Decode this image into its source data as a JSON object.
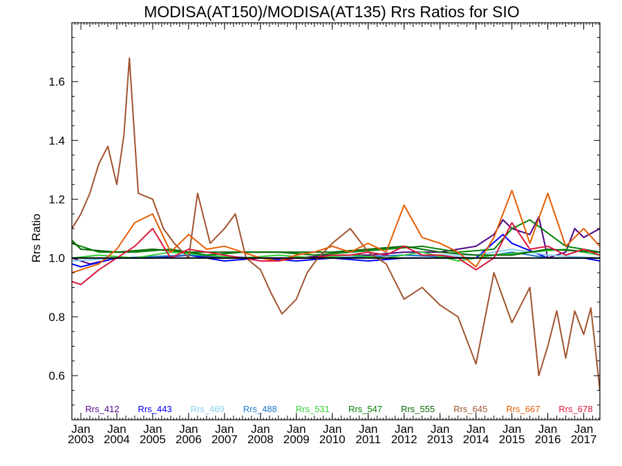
{
  "chart_data": {
    "type": "line",
    "title": "MODISA(AT150)/MODISA(AT135)  Rrs Ratios for SIO",
    "ylabel": "Rrs Ratio",
    "xlabel": "",
    "xlim": [
      2002.75,
      2017.45
    ],
    "ylim": [
      0.45,
      1.8
    ],
    "y_ticks": [
      0.6,
      0.8,
      1.0,
      1.2,
      1.4,
      1.6
    ],
    "y_tick_labels": [
      "0.6",
      "0.8",
      "1.0",
      "1.2",
      "1.4",
      "1.6"
    ],
    "x_ticks": [
      2003,
      2004,
      2005,
      2006,
      2007,
      2008,
      2009,
      2010,
      2011,
      2012,
      2013,
      2014,
      2015,
      2016,
      2017
    ],
    "x_tick_labels": [
      {
        "month": "Jan",
        "year": "2003"
      },
      {
        "month": "Jan",
        "year": "2004"
      },
      {
        "month": "Jan",
        "year": "2005"
      },
      {
        "month": "Jan",
        "year": "2006"
      },
      {
        "month": "Jan",
        "year": "2007"
      },
      {
        "month": "Jan",
        "year": "2008"
      },
      {
        "month": "Jan",
        "year": "2009"
      },
      {
        "month": "Jan",
        "year": "2010"
      },
      {
        "month": "Jan",
        "year": "2011"
      },
      {
        "month": "Jan",
        "year": "2012"
      },
      {
        "month": "Jan",
        "year": "2013"
      },
      {
        "month": "Jan",
        "year": "2014"
      },
      {
        "month": "Jan",
        "year": "2015"
      },
      {
        "month": "Jan",
        "year": "2016"
      },
      {
        "month": "Jan",
        "year": "2017"
      }
    ],
    "reference_line": {
      "y": 1.0,
      "color": "#000000"
    },
    "grid": false,
    "legend_position": "bottom inside plot",
    "series": [
      {
        "name": "Rrs_412",
        "color": "#4b0082",
        "x": [
          2002.75,
          2003.25,
          2004.0,
          2005.0,
          2006.0,
          2007.0,
          2008.0,
          2009.0,
          2010.0,
          2011.0,
          2012.0,
          2013.0,
          2013.5,
          2014.0,
          2014.5,
          2014.75,
          2015.0,
          2015.5,
          2015.75,
          2016.0,
          2016.5,
          2016.75,
          2017.0,
          2017.45
        ],
        "y": [
          1.0,
          0.98,
          1.0,
          1.0,
          1.01,
          1.0,
          1.0,
          1.0,
          1.01,
          1.01,
          1.02,
          1.02,
          1.03,
          1.04,
          1.08,
          1.13,
          1.1,
          1.08,
          1.14,
          1.0,
          1.02,
          1.1,
          1.07,
          1.1
        ]
      },
      {
        "name": "Rrs_443",
        "color": "#0000ff",
        "x": [
          2002.75,
          2003.0,
          2004.0,
          2005.0,
          2006.0,
          2007.0,
          2008.0,
          2009.0,
          2010.0,
          2011.0,
          2012.0,
          2013.0,
          2014.0,
          2014.75,
          2015.0,
          2016.0,
          2016.5,
          2017.0,
          2017.45
        ],
        "y": [
          0.98,
          0.97,
          1.0,
          1.0,
          1.01,
          0.99,
          1.0,
          0.99,
          1.0,
          0.99,
          1.0,
          1.0,
          1.0,
          1.08,
          1.05,
          1.0,
          1.0,
          1.0,
          0.99
        ]
      },
      {
        "name": "Rrs_469",
        "color": "#87ceeb",
        "x": [
          2002.75,
          2004.0,
          2006.0,
          2008.0,
          2010.0,
          2012.0,
          2014.0,
          2015.0,
          2016.0,
          2017.45
        ],
        "y": [
          0.99,
          1.0,
          1.0,
          1.0,
          1.0,
          1.01,
          1.01,
          1.03,
          1.01,
          1.0
        ]
      },
      {
        "name": "Rrs_488",
        "color": "#1e78c8",
        "x": [
          2002.75,
          2004.0,
          2006.0,
          2008.0,
          2010.0,
          2012.0,
          2014.0,
          2015.0,
          2016.0,
          2017.45
        ],
        "y": [
          1.0,
          1.0,
          1.01,
          1.0,
          1.0,
          1.01,
          1.0,
          1.02,
          1.0,
          1.0
        ]
      },
      {
        "name": "Rrs_531",
        "color": "#32cd32",
        "x": [
          2002.75,
          2003.5,
          2004.5,
          2005.5,
          2006.5,
          2007.5,
          2008.5,
          2009.5,
          2010.5,
          2011.5,
          2012.5,
          2013.5,
          2014.5,
          2015.5,
          2016.5,
          2017.45
        ],
        "y": [
          1.0,
          1.01,
          1.0,
          1.02,
          1.01,
          1.0,
          1.01,
          1.0,
          1.01,
          1.0,
          1.02,
          0.99,
          1.01,
          1.02,
          1.03,
          1.01
        ]
      },
      {
        "name": "Rrs_547",
        "color": "#008000",
        "x": [
          2002.75,
          2003.5,
          2004.5,
          2005.5,
          2006.5,
          2007.5,
          2008.5,
          2009.5,
          2010.5,
          2011.5,
          2012.5,
          2013.5,
          2014.5,
          2015.0,
          2015.5,
          2016.5,
          2017.45
        ],
        "y": [
          1.05,
          1.02,
          1.02,
          1.03,
          1.01,
          1.02,
          1.02,
          1.01,
          1.02,
          1.03,
          1.04,
          1.02,
          1.03,
          1.1,
          1.13,
          1.04,
          1.02
        ]
      },
      {
        "name": "Rrs_555",
        "color": "#006400",
        "x": [
          2002.75,
          2003.0,
          2004.0,
          2005.0,
          2006.0,
          2007.0,
          2008.0,
          2009.0,
          2010.0,
          2011.0,
          2012.0,
          2013.0,
          2014.0,
          2015.0,
          2016.0,
          2017.45
        ],
        "y": [
          1.06,
          1.03,
          1.02,
          1.03,
          1.02,
          1.02,
          1.02,
          1.02,
          1.02,
          1.03,
          1.04,
          1.02,
          1.01,
          1.01,
          1.03,
          1.02
        ]
      },
      {
        "name": "Rrs_645",
        "color": "#a0522d",
        "x": [
          2002.75,
          2003.0,
          2003.25,
          2003.5,
          2003.75,
          2004.0,
          2004.2,
          2004.35,
          2004.6,
          2005.0,
          2005.3,
          2005.6,
          2006.0,
          2006.25,
          2006.6,
          2007.0,
          2007.3,
          2007.6,
          2008.0,
          2008.3,
          2008.6,
          2009.0,
          2009.3,
          2009.6,
          2010.0,
          2010.5,
          2011.0,
          2011.5,
          2012.0,
          2012.5,
          2013.0,
          2013.5,
          2014.0,
          2014.5,
          2015.0,
          2015.5,
          2015.75,
          2016.0,
          2016.25,
          2016.5,
          2016.75,
          2017.0,
          2017.2,
          2017.45
        ],
        "y": [
          1.1,
          1.15,
          1.22,
          1.32,
          1.38,
          1.25,
          1.42,
          1.68,
          1.22,
          1.2,
          1.1,
          1.05,
          1.0,
          1.22,
          1.05,
          1.1,
          1.15,
          1.0,
          0.96,
          0.88,
          0.81,
          0.86,
          0.95,
          1.0,
          1.05,
          1.1,
          1.02,
          0.98,
          0.86,
          0.9,
          0.84,
          0.8,
          0.64,
          0.95,
          0.78,
          0.9,
          0.6,
          0.7,
          0.82,
          0.66,
          0.82,
          0.74,
          0.83,
          0.55
        ]
      },
      {
        "name": "Rrs_667",
        "color": "#e65c00",
        "x": [
          2002.75,
          2003.0,
          2003.5,
          2004.0,
          2004.5,
          2005.0,
          2005.5,
          2006.0,
          2006.5,
          2007.0,
          2007.5,
          2008.0,
          2008.5,
          2009.0,
          2009.5,
          2010.0,
          2010.5,
          2011.0,
          2011.5,
          2012.0,
          2012.5,
          2013.0,
          2013.5,
          2014.0,
          2014.5,
          2015.0,
          2015.5,
          2016.0,
          2016.5,
          2017.0,
          2017.45
        ],
        "y": [
          0.95,
          0.96,
          0.98,
          1.03,
          1.12,
          1.15,
          1.02,
          1.08,
          1.03,
          1.04,
          1.02,
          1.0,
          0.99,
          1.01,
          1.02,
          1.04,
          1.02,
          1.05,
          1.02,
          1.18,
          1.07,
          1.05,
          1.02,
          0.97,
          1.07,
          1.23,
          1.05,
          1.22,
          1.04,
          1.1,
          1.04
        ]
      },
      {
        "name": "Rrs_678",
        "color": "#dc143c",
        "x": [
          2002.75,
          2003.0,
          2003.5,
          2004.0,
          2004.5,
          2005.0,
          2005.5,
          2006.0,
          2006.5,
          2007.0,
          2007.5,
          2008.0,
          2008.5,
          2009.0,
          2009.5,
          2010.0,
          2010.5,
          2011.0,
          2011.5,
          2012.0,
          2012.5,
          2013.0,
          2013.5,
          2014.0,
          2014.5,
          2015.0,
          2015.5,
          2016.0,
          2016.5,
          2017.0,
          2017.45
        ],
        "y": [
          0.92,
          0.91,
          0.96,
          1.0,
          1.04,
          1.1,
          1.0,
          1.03,
          1.02,
          1.01,
          1.0,
          0.99,
          0.99,
          1.0,
          1.0,
          1.01,
          1.01,
          1.02,
          1.01,
          1.04,
          1.01,
          1.01,
          1.0,
          0.96,
          1.0,
          1.12,
          1.03,
          1.04,
          1.01,
          1.03,
          1.01
        ]
      }
    ]
  }
}
